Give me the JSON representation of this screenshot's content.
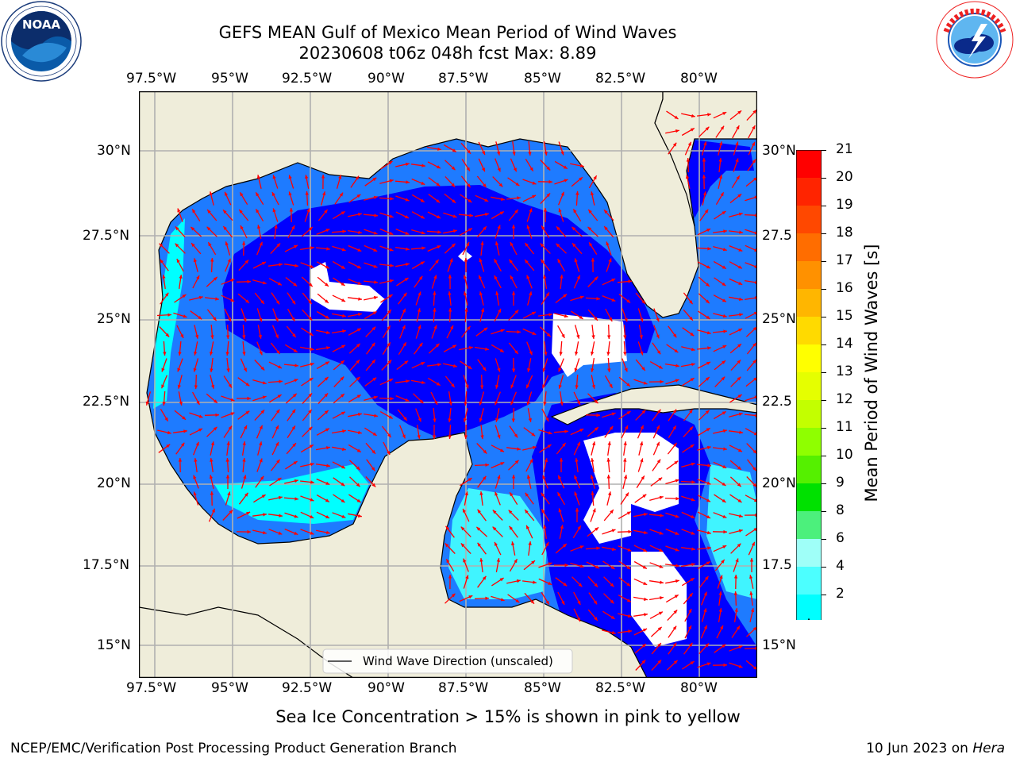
{
  "title": {
    "line1": "GEFS MEAN Gulf of Mexico Mean Period of Wind Waves",
    "line2": "20230608 t06z 048h fcst   Max: 8.89"
  },
  "logos": {
    "noaa_text": "NOAA",
    "noaa_ring": "NATIONAL OCEANIC AND ATMOSPHERIC ADMINISTRATION · U.S. DEPARTMENT OF COMMERCE",
    "nws_ring": "NATIONAL WEATHER SERVICE"
  },
  "map": {
    "lon_ticks": [
      "97.5°W",
      "95°W",
      "92.5°W",
      "90°W",
      "87.5°W",
      "85°W",
      "82.5°W",
      "80°W"
    ],
    "lat_ticks_left": [
      "30°N",
      "27.5°N",
      "25°N",
      "22.5°N",
      "20°N",
      "17.5°N",
      "15°N"
    ],
    "lat_ticks_right": [
      "30°N",
      "27.5",
      "25°N",
      "22.5",
      "20°N",
      "17.5",
      "15°N"
    ],
    "colors": {
      "land": "#efedda",
      "ocean_bg": "#1e7bff",
      "grid": "#b0b0b0",
      "coast": "#000000",
      "arrow": "#ff0000"
    },
    "legend_label": "Wind Wave Direction (unscaled)"
  },
  "colorbar": {
    "label": "Mean Period of Wind Waves [s]",
    "ticks": [
      "21",
      "20",
      "19",
      "18",
      "17",
      "16",
      "15",
      "14",
      "13",
      "12",
      "11",
      "10",
      "9",
      "8",
      "6",
      "4",
      "2"
    ],
    "colors": [
      "#ff0000",
      "#ff2400",
      "#ff4800",
      "#ff6d00",
      "#ff9100",
      "#ffb600",
      "#ffda00",
      "#ffff00",
      "#e5ff00",
      "#c3ff00",
      "#8fff00",
      "#55f000",
      "#00e100",
      "#4cf07c",
      "#9ffff8",
      "#4cffff",
      "#00ffff",
      "#1e7bff",
      "#0000ff"
    ]
  },
  "footer": {
    "note": "Sea Ice Concentration > 15% is shown in pink to yellow",
    "credit": "NCEP/EMC/Verification Post Processing Product Generation Branch",
    "date": "10 Jun 2023 on ",
    "host": "Hera"
  }
}
